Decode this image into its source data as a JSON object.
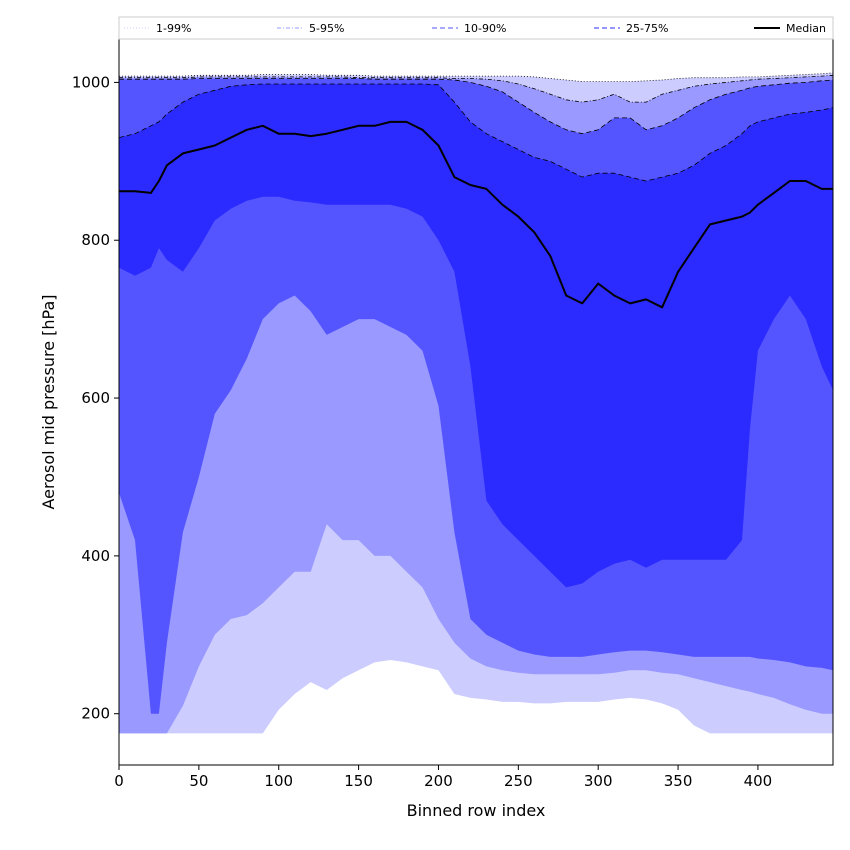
{
  "chart_data": {
    "type": "area",
    "title": "",
    "xlabel": "Binned row index",
    "ylabel": "Aerosol mid pressure [hPa]",
    "xlim": [
      0,
      447
    ],
    "ylim": [
      135,
      1055
    ],
    "xticks": [
      0,
      50,
      100,
      150,
      200,
      250,
      300,
      350,
      400
    ],
    "yticks": [
      200,
      400,
      600,
      800,
      1000
    ],
    "grid": false,
    "legend": {
      "placement": "top",
      "orientation": "horizontal"
    },
    "x": [
      0,
      10,
      20,
      25,
      30,
      40,
      50,
      60,
      70,
      80,
      90,
      100,
      110,
      120,
      130,
      140,
      150,
      160,
      170,
      180,
      190,
      200,
      210,
      220,
      230,
      240,
      250,
      260,
      270,
      280,
      290,
      300,
      310,
      320,
      330,
      340,
      350,
      360,
      370,
      380,
      390,
      395,
      400,
      410,
      420,
      430,
      440,
      447
    ],
    "bands": [
      {
        "name": "1-99%",
        "color": "#ccccff",
        "line_style": "dotted",
        "lower": [
          175,
          175,
          175,
          175,
          175,
          175,
          175,
          175,
          175,
          175,
          175,
          205,
          225,
          240,
          230,
          245,
          255,
          265,
          268,
          265,
          260,
          255,
          225,
          220,
          218,
          215,
          215,
          213,
          213,
          215,
          215,
          215,
          218,
          220,
          218,
          213,
          205,
          185,
          175,
          175,
          175,
          175,
          175,
          175,
          175,
          175,
          175,
          175
        ],
        "upper": [
          1008,
          1008,
          1008,
          1008,
          1008,
          1008,
          1009,
          1009,
          1009,
          1009,
          1010,
          1010,
          1010,
          1010,
          1009,
          1009,
          1009,
          1008,
          1008,
          1008,
          1008,
          1008,
          1008,
          1008,
          1008,
          1008,
          1008,
          1007,
          1005,
          1003,
          1001,
          1001,
          1001,
          1001,
          1002,
          1003,
          1005,
          1006,
          1006,
          1006,
          1007,
          1007,
          1007,
          1008,
          1009,
          1010,
          1011,
          1012
        ]
      },
      {
        "name": "5-95%",
        "color": "#9999ff",
        "line_style": "dashdot",
        "lower": [
          175,
          175,
          175,
          175,
          175,
          210,
          260,
          300,
          320,
          325,
          340,
          360,
          380,
          380,
          440,
          420,
          420,
          400,
          400,
          380,
          360,
          320,
          290,
          270,
          260,
          255,
          252,
          250,
          250,
          250,
          250,
          250,
          252,
          255,
          255,
          252,
          250,
          245,
          240,
          235,
          230,
          228,
          225,
          220,
          212,
          205,
          200,
          200
        ],
        "upper": [
          1006,
          1006,
          1006,
          1006,
          1006,
          1006,
          1007,
          1007,
          1007,
          1007,
          1007,
          1007,
          1007,
          1007,
          1007,
          1007,
          1006,
          1006,
          1006,
          1006,
          1006,
          1006,
          1005,
          1005,
          1004,
          1002,
          998,
          992,
          985,
          978,
          975,
          978,
          985,
          975,
          975,
          985,
          990,
          995,
          998,
          1000,
          1002,
          1003,
          1004,
          1005,
          1006,
          1007,
          1008,
          1009
        ]
      },
      {
        "name": "10-90%",
        "color": "#5555ff",
        "line_style": "dashed",
        "lower": [
          480,
          420,
          200,
          200,
          290,
          430,
          500,
          580,
          610,
          650,
          700,
          720,
          730,
          710,
          680,
          690,
          700,
          700,
          690,
          680,
          660,
          590,
          430,
          320,
          300,
          290,
          280,
          275,
          272,
          272,
          272,
          275,
          278,
          280,
          280,
          278,
          275,
          272,
          272,
          272,
          272,
          272,
          270,
          268,
          265,
          260,
          258,
          255
        ],
        "upper": [
          1004,
          1004,
          1004,
          1004,
          1004,
          1004,
          1005,
          1005,
          1005,
          1005,
          1005,
          1005,
          1005,
          1005,
          1005,
          1005,
          1005,
          1004,
          1004,
          1004,
          1004,
          1004,
          1003,
          1000,
          995,
          988,
          975,
          962,
          950,
          940,
          935,
          940,
          955,
          955,
          940,
          945,
          955,
          968,
          978,
          985,
          990,
          993,
          995,
          997,
          999,
          1000,
          1002,
          1003
        ]
      },
      {
        "name": "25-75%",
        "color": "#2b2bff",
        "line_style": "dashed",
        "lower": [
          765,
          755,
          765,
          790,
          775,
          760,
          790,
          825,
          840,
          850,
          855,
          855,
          850,
          848,
          845,
          845,
          845,
          845,
          845,
          840,
          830,
          800,
          760,
          640,
          470,
          440,
          420,
          400,
          380,
          360,
          365,
          380,
          390,
          395,
          385,
          395,
          395,
          395,
          395,
          395,
          420,
          560,
          660,
          700,
          730,
          700,
          640,
          610
        ],
        "upper": [
          930,
          935,
          945,
          950,
          960,
          975,
          985,
          990,
          995,
          997,
          998,
          998,
          998,
          998,
          998,
          998,
          998,
          998,
          998,
          998,
          998,
          997,
          975,
          950,
          935,
          925,
          915,
          905,
          900,
          890,
          880,
          885,
          885,
          880,
          875,
          880,
          885,
          895,
          910,
          920,
          935,
          945,
          950,
          955,
          960,
          962,
          965,
          968
        ]
      }
    ],
    "median": {
      "name": "Median",
      "color": "#000000",
      "values": [
        862,
        862,
        860,
        875,
        895,
        910,
        915,
        920,
        930,
        940,
        945,
        935,
        935,
        932,
        935,
        940,
        945,
        945,
        950,
        950,
        940,
        920,
        880,
        870,
        865,
        845,
        830,
        810,
        780,
        730,
        720,
        745,
        730,
        720,
        725,
        715,
        760,
        790,
        820,
        825,
        830,
        835,
        845,
        860,
        875,
        875,
        865,
        865
      ]
    }
  }
}
